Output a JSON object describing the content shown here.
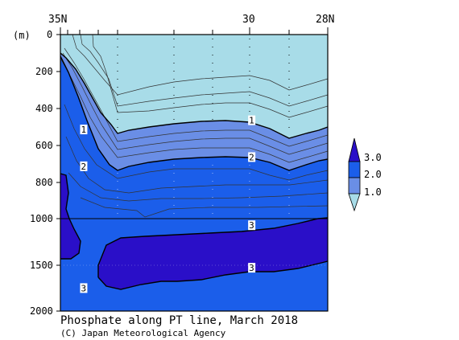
{
  "chart_data": {
    "type": "contour section",
    "title": "Phosphate along PT line, March 2018",
    "credit": "(C) Japan Meteorological Agency",
    "ylabel": "(m)",
    "x_ticks": [
      "35N",
      "30",
      "28N"
    ],
    "y_ticks": [
      "0",
      "200",
      "400",
      "600",
      "800",
      "1000",
      "1500",
      "2000"
    ],
    "ylim": [
      0,
      2000
    ],
    "y_break_at": 1000,
    "legend_levels": [
      "3.0",
      "2.0",
      "1.0"
    ],
    "contour_labels": [
      {
        "value": "1",
        "lat": 34.4,
        "depth": 520
      },
      {
        "value": "1",
        "lat": 30.0,
        "depth": 470
      },
      {
        "value": "2",
        "lat": 34.4,
        "depth": 720
      },
      {
        "value": "2",
        "lat": 30.0,
        "depth": 670
      },
      {
        "value": "3",
        "lat": 30.0,
        "depth": 1080
      },
      {
        "value": "3",
        "lat": 30.0,
        "depth": 1540
      },
      {
        "value": "3",
        "lat": 34.4,
        "depth": 1760
      }
    ],
    "colors": {
      "low": "#a8dce8",
      "mid": "#6a8ee6",
      "high": "#1b5eea",
      "max": "#2a0fc8"
    }
  }
}
